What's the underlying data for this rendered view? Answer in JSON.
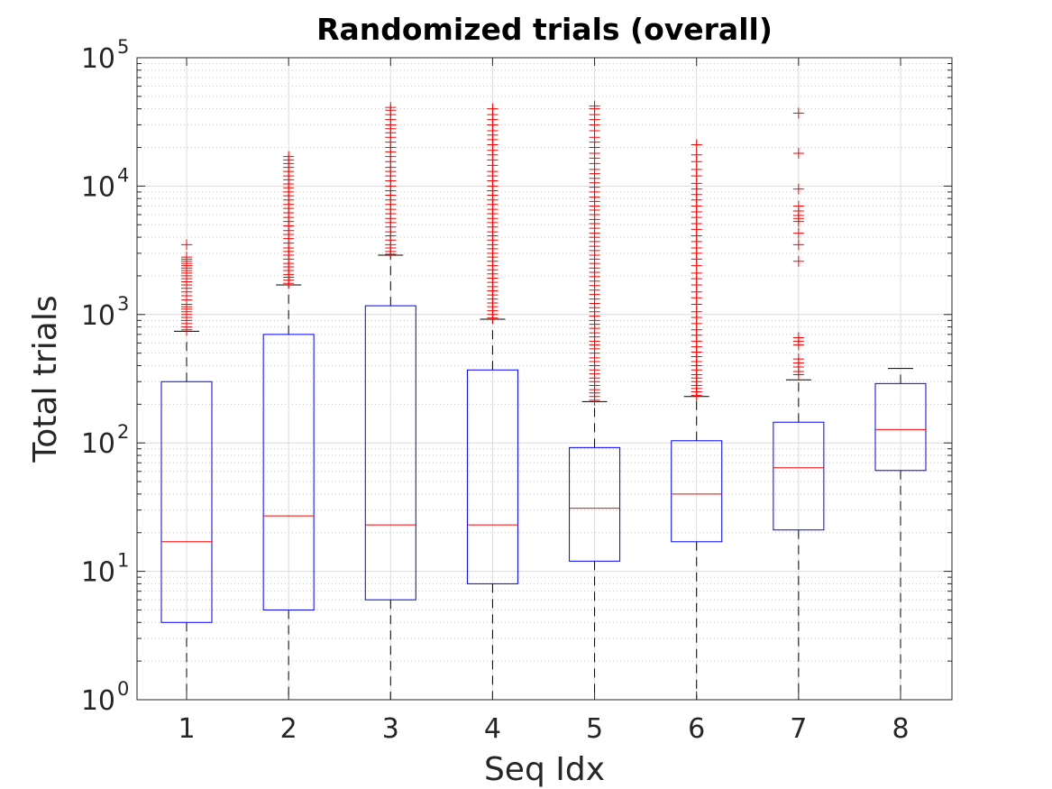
{
  "chart_data": {
    "type": "boxplot",
    "title": "Randomized trials (overall)",
    "xlabel": "Seq Idx",
    "ylabel": "Total trials",
    "yscale": "log",
    "ylim": [
      1,
      100000
    ],
    "grid": true,
    "minor_grid": true,
    "categories": [
      "1",
      "2",
      "3",
      "4",
      "5",
      "6",
      "7",
      "8"
    ],
    "y_ticks": [
      {
        "base": "10",
        "exp": "0"
      },
      {
        "base": "10",
        "exp": "1"
      },
      {
        "base": "10",
        "exp": "2"
      },
      {
        "base": "10",
        "exp": "3"
      },
      {
        "base": "10",
        "exp": "4"
      },
      {
        "base": "10",
        "exp": "5"
      }
    ],
    "colors": {
      "box": "#0000ff",
      "median": "#ff0000",
      "whisker": "#000000",
      "outlier": "#ff0000",
      "grid": "#d0d0d0"
    },
    "boxes": [
      {
        "category": "1",
        "whisker_low": 1,
        "q1": 4,
        "median": 17,
        "q3": 300,
        "whisker_high": 740,
        "outliers": [
          760,
          800,
          850,
          900,
          950,
          1000,
          1050,
          1100,
          1150,
          1200,
          1300,
          1400,
          1500,
          1600,
          1700,
          1800,
          1900,
          2000,
          2100,
          2200,
          2300,
          2400,
          2500,
          2600,
          2700,
          2800,
          3500
        ]
      },
      {
        "category": "2",
        "whisker_low": 1,
        "q1": 5,
        "median": 27,
        "q3": 700,
        "whisker_high": 1700,
        "outliers": [
          1750,
          1850,
          1950,
          2050,
          2200,
          2350,
          2500,
          2700,
          2900,
          3100,
          3300,
          3600,
          3900,
          4200,
          4500,
          4900,
          5300,
          5700,
          6200,
          6700,
          7200,
          7800,
          8400,
          9000,
          9700,
          10400,
          11200,
          12000,
          13000,
          14000,
          15000,
          16000,
          17000
        ]
      },
      {
        "category": "3",
        "whisker_low": 1,
        "q1": 6,
        "median": 23,
        "q3": 1170,
        "whisker_high": 2900,
        "outliers": [
          2950,
          3100,
          3300,
          3500,
          3800,
          4100,
          4400,
          4800,
          5200,
          5600,
          6100,
          6600,
          7200,
          7800,
          8500,
          9200,
          10000,
          11000,
          12000,
          13000,
          14000,
          15500,
          17000,
          18500,
          20000,
          22000,
          24000,
          26000,
          28000,
          30000,
          33000,
          36000,
          39000,
          41000
        ]
      },
      {
        "category": "4",
        "whisker_low": 1,
        "q1": 8,
        "median": 23,
        "q3": 370,
        "whisker_high": 920,
        "outliers": [
          940,
          1000,
          1070,
          1150,
          1230,
          1320,
          1420,
          1530,
          1650,
          1780,
          1920,
          2070,
          2230,
          2400,
          2600,
          2800,
          3000,
          3250,
          3500,
          3800,
          4100,
          4400,
          4800,
          5200,
          5600,
          6100,
          6600,
          7200,
          7800,
          8500,
          9200,
          10000,
          11000,
          12000,
          13000,
          14500,
          16000,
          17500,
          19000,
          21000,
          23000,
          25000,
          27000,
          30000,
          33000,
          36000,
          40000
        ]
      },
      {
        "category": "5",
        "whisker_low": 1,
        "q1": 12,
        "median": 31,
        "q3": 92,
        "whisker_high": 210,
        "outliers": [
          215,
          230,
          245,
          260,
          280,
          300,
          320,
          345,
          370,
          400,
          430,
          460,
          500,
          540,
          580,
          620,
          670,
          720,
          780,
          840,
          900,
          970,
          1050,
          1130,
          1220,
          1320,
          1430,
          1550,
          1680,
          1820,
          1970,
          2130,
          2300,
          2500,
          2700,
          2900,
          3150,
          3400,
          3700,
          4000,
          4300,
          4700,
          5100,
          5500,
          6000,
          6500,
          7000,
          7600,
          8200,
          9000,
          9800,
          10600,
          11500,
          12500,
          13500,
          15000,
          16500,
          18000,
          20000,
          22000,
          24000,
          27000,
          30000,
          33000,
          36000,
          40000,
          42000
        ]
      },
      {
        "category": "6",
        "whisker_low": 1,
        "q1": 17,
        "median": 40,
        "q3": 104,
        "whisker_high": 230,
        "outliers": [
          235,
          250,
          265,
          280,
          300,
          320,
          340,
          370,
          400,
          430,
          470,
          510,
          560,
          620,
          690,
          760,
          850,
          950,
          1050,
          1200,
          1350,
          1500,
          1700,
          1900,
          2100,
          2400,
          2700,
          3000,
          3300,
          3700,
          4100,
          4600,
          5100,
          5700,
          6300,
          7000,
          7800,
          8600,
          9500,
          10500,
          12000,
          13500,
          15500,
          17500,
          21000
        ]
      },
      {
        "category": "7",
        "whisker_low": 1,
        "q1": 21,
        "median": 64,
        "q3": 145,
        "whisker_high": 310,
        "outliers": [
          340,
          360,
          390,
          420,
          450,
          580,
          620,
          660,
          2600,
          3500,
          4300,
          5300,
          5600,
          5900,
          6400,
          7000,
          9500,
          18000,
          37000
        ]
      },
      {
        "category": "8",
        "whisker_low": 1,
        "q1": 61,
        "median": 127,
        "q3": 290,
        "whisker_high": 380,
        "outliers": []
      }
    ]
  }
}
